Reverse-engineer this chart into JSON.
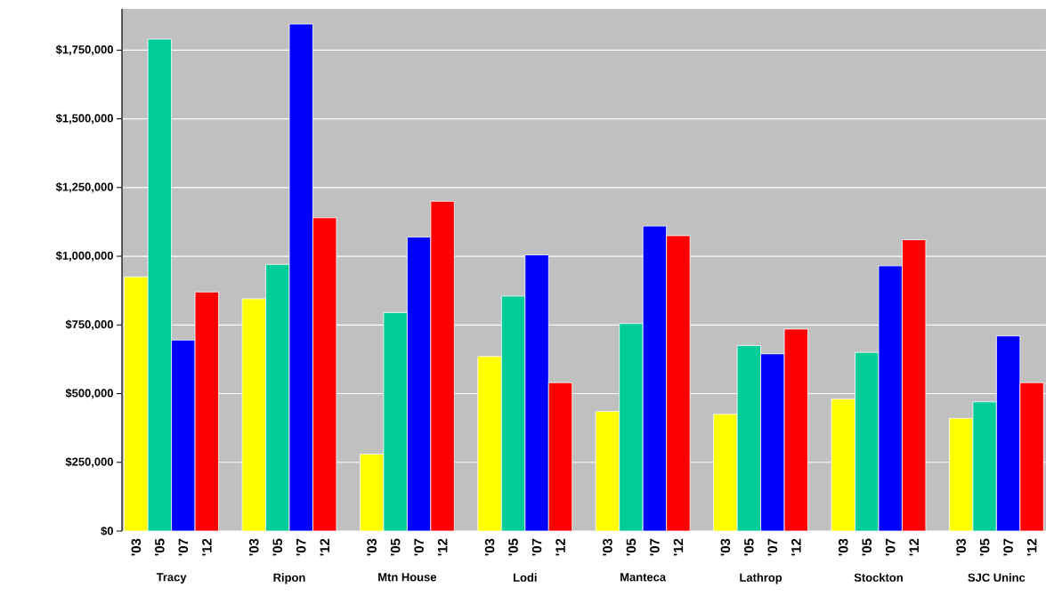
{
  "chart_data": {
    "type": "bar",
    "categories": [
      "Tracy",
      "Ripon",
      "Mtn House",
      "Lodi",
      "Manteca",
      "Lathrop",
      "Stockton",
      "SJC Uninc"
    ],
    "series": [
      {
        "name": "'03",
        "color": "#ffff00",
        "values": [
          925000,
          845000,
          280000,
          635000,
          435000,
          425000,
          480000,
          410000
        ]
      },
      {
        "name": "'05",
        "color": "#00cc99",
        "values": [
          1790000,
          970000,
          795000,
          855000,
          755000,
          675000,
          650000,
          470000
        ]
      },
      {
        "name": "'07",
        "color": "#0000ff",
        "values": [
          695000,
          1845000,
          1070000,
          1005000,
          1110000,
          645000,
          965000,
          710000
        ]
      },
      {
        "name": "'12",
        "color": "#ff0000",
        "values": [
          870000,
          1140000,
          1200000,
          540000,
          1075000,
          735000,
          1060000,
          540000
        ]
      }
    ],
    "ylim": [
      0,
      1900000
    ],
    "yticks": [
      {
        "value": 0,
        "label": "$0"
      },
      {
        "value": 250000,
        "label": "$250,000"
      },
      {
        "value": 500000,
        "label": "$500,000"
      },
      {
        "value": 750000,
        "label": "$750,000"
      },
      {
        "value": 1000000,
        "label": "$1,000,000"
      },
      {
        "value": 1250000,
        "label": "$1,250,000"
      },
      {
        "value": 1500000,
        "label": "$1,500,000"
      },
      {
        "value": 1750000,
        "label": "$1,750,000"
      }
    ],
    "grid": "y",
    "legend": false
  }
}
